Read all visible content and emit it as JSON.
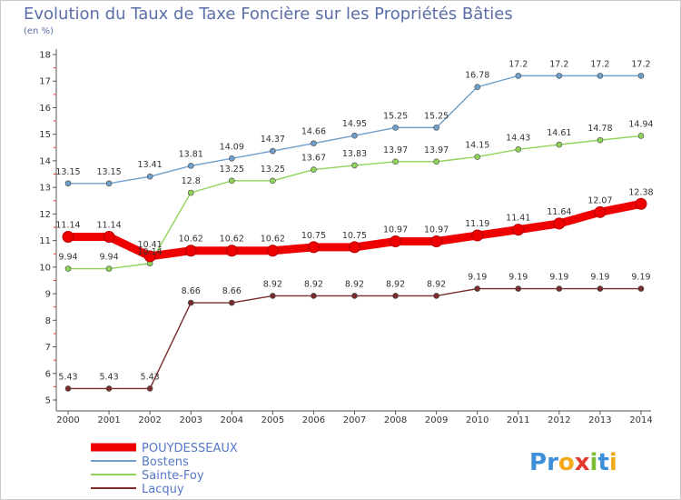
{
  "title": "Evolution du Taux de Taxe Foncière sur les Propriétés Bâties",
  "unit": "(en %)",
  "brand": {
    "letters": [
      "P",
      "r",
      "o",
      "x",
      "i",
      "t",
      "i"
    ],
    "colors": [
      "#3c8fd8",
      "#3c8fd8",
      "#f2a91c",
      "#e23a2e",
      "#7bbf32",
      "#3c8fd8",
      "#f2a91c"
    ]
  },
  "chart_data": {
    "type": "line",
    "title": "Evolution du Taux de Taxe Foncière sur les Propriétés Bâties",
    "ylabel": "(en %)",
    "xlabel": "",
    "ylim": [
      5,
      18
    ],
    "yticks": [
      5,
      6,
      7,
      8,
      9,
      10,
      11,
      12,
      13,
      14,
      15,
      16,
      17,
      18
    ],
    "grid": false,
    "legend": "bottom-left",
    "x": [
      "2000",
      "2001",
      "2002",
      "2003",
      "2004",
      "2005",
      "2006",
      "2007",
      "2008",
      "2009",
      "2010",
      "2011",
      "2012",
      "2013",
      "2014"
    ],
    "series": [
      {
        "name": "POUYDESSEAUX",
        "color": "#ee0000",
        "values": [
          11.14,
          11.14,
          10.41,
          10.62,
          10.62,
          10.62,
          10.75,
          10.75,
          10.97,
          10.97,
          11.19,
          11.41,
          11.64,
          12.07,
          12.38
        ],
        "labels": [
          "11.14",
          "11.14",
          "10.41",
          "10.62",
          "10.62",
          "10.62",
          "10.75",
          "10.75",
          "10.97",
          "10.97",
          "11.19",
          "11.41",
          "11.64",
          "12.07",
          "12.38"
        ]
      },
      {
        "name": "Bostens",
        "color": "#6fa0cc",
        "values": [
          13.15,
          13.15,
          13.41,
          13.81,
          14.09,
          14.37,
          14.66,
          14.95,
          15.25,
          15.25,
          16.78,
          17.2,
          17.2,
          17.2,
          17.2
        ],
        "labels": [
          "13.15",
          "13.15",
          "13.41",
          "13.81",
          "14.09",
          "14.37",
          "14.66",
          "14.95",
          "15.25",
          "15.25",
          "16.78",
          "17.2",
          "17.2",
          "17.2",
          "17.2"
        ]
      },
      {
        "name": "Sainte-Foy",
        "color": "#8fd45a",
        "values": [
          9.94,
          9.94,
          10.14,
          12.8,
          13.25,
          13.25,
          13.67,
          13.83,
          13.97,
          13.97,
          14.15,
          14.43,
          14.61,
          14.78,
          14.94
        ],
        "labels": [
          "9.94",
          "9.94",
          "10.14",
          "12.8",
          "13.25",
          "13.25",
          "13.67",
          "13.83",
          "13.97",
          "13.97",
          "14.15",
          "14.43",
          "14.61",
          "14.78",
          "14.94"
        ]
      },
      {
        "name": "Lacquy",
        "color": "#7a2c2c",
        "values": [
          5.43,
          5.43,
          5.43,
          8.66,
          8.66,
          8.92,
          8.92,
          8.92,
          8.92,
          8.92,
          9.19,
          9.19,
          9.19,
          9.19,
          9.19
        ],
        "labels": [
          "5.43",
          "5.43",
          "5.43",
          "8.66",
          "8.66",
          "8.92",
          "8.92",
          "8.92",
          "8.92",
          "8.92",
          "9.19",
          "9.19",
          "9.19",
          "9.19",
          "9.19"
        ]
      }
    ]
  }
}
